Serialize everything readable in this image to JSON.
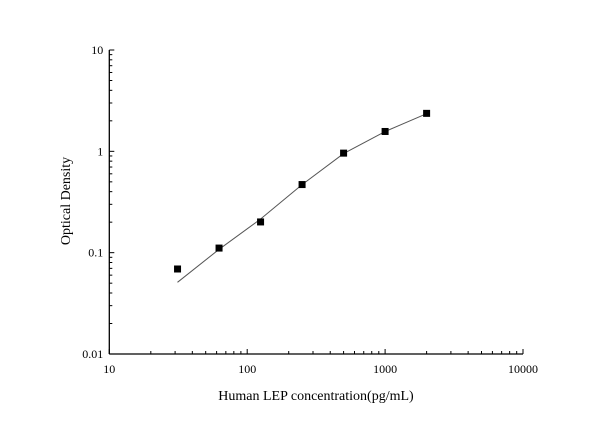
{
  "chart_data": {
    "type": "scatter",
    "title": "",
    "xlabel": "Human LEP concentration(pg/mL)",
    "ylabel": "Optical Density",
    "xscale": "log",
    "yscale": "log",
    "xlim": [
      10,
      10000
    ],
    "ylim": [
      0.01,
      10
    ],
    "x_ticks": [
      "10",
      "100",
      "1000",
      "10000"
    ],
    "y_ticks": [
      "0.01",
      "0.1",
      "1",
      "10"
    ],
    "grid": false,
    "legend": "none",
    "series": [
      {
        "marker": "square",
        "color": "#000000",
        "x": [
          31.25,
          62.5,
          125,
          250,
          500,
          1000,
          2000
        ],
        "y": [
          0.069,
          0.111,
          0.201,
          0.47,
          0.96,
          1.57,
          2.37
        ]
      }
    ],
    "fit_curve": {
      "color": "#555555",
      "x": [
        31.25,
        62.5,
        125,
        250,
        500,
        1000,
        2000
      ],
      "y": [
        0.051,
        0.108,
        0.215,
        0.47,
        0.95,
        1.57,
        2.35
      ]
    }
  }
}
